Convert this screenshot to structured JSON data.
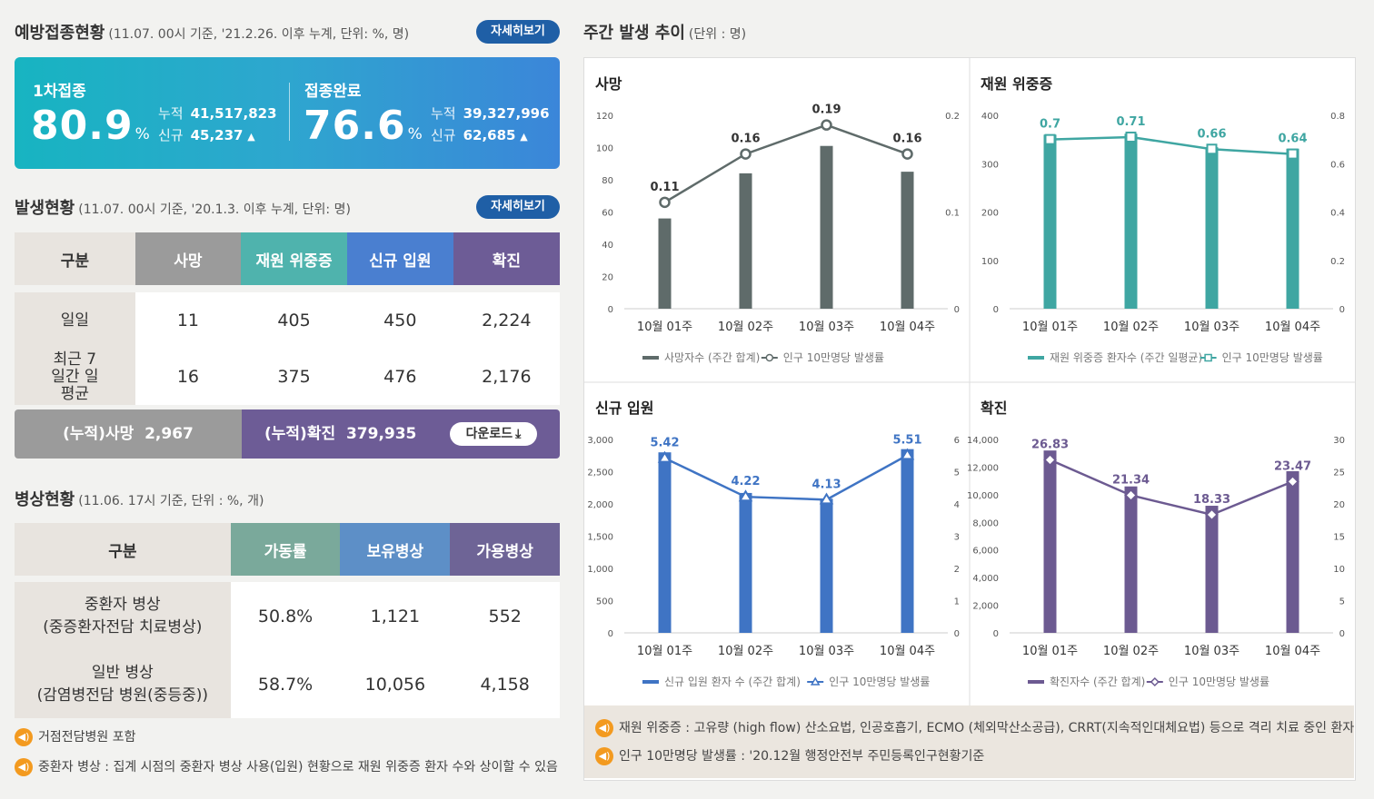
{
  "vaccination": {
    "title": "예방접종현황",
    "subtitle": "(11.07. 00시 기준, '21.2.26. 이후 누계, 단위: %, 명)",
    "more_label": "자세히보기",
    "first": {
      "label": "1차접종",
      "rate": "80.9",
      "unit": "%",
      "cum_label": "누적",
      "cum_value": "41,517,823",
      "new_label": "신규",
      "new_value": "45,237"
    },
    "complete": {
      "label": "접종완료",
      "rate": "76.6",
      "unit": "%",
      "cum_label": "누적",
      "cum_value": "39,327,996",
      "new_label": "신규",
      "new_value": "62,685"
    }
  },
  "occurrence": {
    "title": "발생현황",
    "subtitle": "(11.07. 00시 기준, '20.1.3. 이후 누계, 단위: 명)",
    "more_label": "자세히보기",
    "headers": [
      "구분",
      "사망",
      "재원 위중증",
      "신규 입원",
      "확진"
    ],
    "rows": [
      {
        "label": "일일",
        "values": [
          "11",
          "405",
          "450",
          "2,224"
        ]
      },
      {
        "label": "최근 7일간 일평균",
        "values": [
          "16",
          "375",
          "476",
          "2,176"
        ]
      }
    ],
    "cum_death_label": "(누적)사망",
    "cum_death_value": "2,967",
    "cum_conf_label": "(누적)확진",
    "cum_conf_value": "379,935",
    "download_label": "다운로드"
  },
  "beds": {
    "title": "병상현황",
    "subtitle": "(11.06. 17시 기준, 단위 : %, 개)",
    "headers": [
      "구분",
      "가동률",
      "보유병상",
      "가용병상"
    ],
    "rows": [
      {
        "label1": "중환자 병상",
        "label2": "(중증환자전담 치료병상)",
        "values": [
          "50.8%",
          "1,121",
          "552"
        ]
      },
      {
        "label1": "일반 병상",
        "label2": "(감염병전담 병원(중등중))",
        "values": [
          "58.7%",
          "10,056",
          "4,158"
        ]
      }
    ],
    "notes": [
      "거점전담병원 포함",
      "중환자 병상 : 집계 시점의 중환자 병상 사용(입원) 현황으로 재원 위중증 환자 수와 상이할 수 있음"
    ]
  },
  "weekly": {
    "title": "주간 발생 추이",
    "subtitle": "(단위 : 명)",
    "notes": [
      "재원 위중증 : 고유량 (high flow) 산소요법, 인공호흡기, ECMO (체외막산소공급), CRRT(지속적인대체요법) 등으로 격리 치료 중인 환자",
      "인구 10만명당 발생률 : '20.12월 행정안전부 주민등록인구현황기준"
    ]
  },
  "colors": {
    "death": "#5f6b6a",
    "severe": "#3fa6a2",
    "hosp": "#3f74c4",
    "conf": "#6c5a91",
    "death_head": "#9a9a9a",
    "severe_head": "#4fb3ad",
    "hosp_head": "#4a7fd0",
    "conf_head": "#6d5c96",
    "bed_rate": "#7aa99b",
    "bed_own": "#5d8fc7",
    "bed_avail": "#6e6496"
  },
  "chart_data": [
    {
      "type": "bar",
      "title": "사망",
      "categories": [
        "10월 01주",
        "10월 02주",
        "10월 03주",
        "10월 04주"
      ],
      "series": [
        {
          "name": "사망자수 (주간 합계)",
          "values": [
            56,
            84,
            101,
            85
          ]
        },
        {
          "name": "인구 10만명당 발생률",
          "values": [
            0.11,
            0.16,
            0.19,
            0.16
          ]
        }
      ],
      "ylim": [
        0,
        120
      ],
      "yticks": [
        "0",
        "20",
        "40",
        "60",
        "80",
        "100",
        "120"
      ],
      "y2lim": [
        0,
        0.2
      ],
      "y2ticks": [
        "0",
        "0.1",
        "0.2"
      ]
    },
    {
      "type": "bar",
      "title": "재원 위중증",
      "categories": [
        "10월 01주",
        "10월 02주",
        "10월 03주",
        "10월 04주"
      ],
      "series": [
        {
          "name": "재원 위중증 환자수 (주간 일평균)",
          "values": [
            360,
            362,
            334,
            331
          ]
        },
        {
          "name": "인구 10만명당 발생률",
          "values": [
            0.7,
            0.71,
            0.66,
            0.64
          ]
        }
      ],
      "ylim": [
        0,
        400
      ],
      "yticks": [
        "0",
        "100",
        "200",
        "300",
        "400"
      ],
      "y2lim": [
        0,
        0.8
      ],
      "y2ticks": [
        "0",
        "0.2",
        "0.4",
        "0.6",
        "0.8"
      ]
    },
    {
      "type": "bar",
      "title": "신규 입원",
      "categories": [
        "10월 01주",
        "10월 02주",
        "10월 03주",
        "10월 04주"
      ],
      "series": [
        {
          "name": "신규 입원 환자 수 (주간 합계)",
          "values": [
            2800,
            2170,
            2080,
            2850
          ]
        },
        {
          "name": "인구 10만명당 발생률",
          "values": [
            5.42,
            4.22,
            4.13,
            5.51
          ]
        }
      ],
      "ylim": [
        0,
        3000
      ],
      "yticks": [
        "0",
        "500",
        "1,000",
        "1,500",
        "2,000",
        "2,500",
        "3,000"
      ],
      "y2lim": [
        0,
        6
      ],
      "y2ticks": [
        "0",
        "1",
        "2",
        "3",
        "4",
        "5",
        "6"
      ]
    },
    {
      "type": "bar",
      "title": "확진",
      "categories": [
        "10월 01주",
        "10월 02주",
        "10월 03주",
        "10월 04주"
      ],
      "series": [
        {
          "name": "확진자수 (주간 합계)",
          "values": [
            13200,
            10600,
            9200,
            11700
          ]
        },
        {
          "name": "인구 10만명당 발생률",
          "values": [
            26.83,
            21.34,
            18.33,
            23.47
          ]
        }
      ],
      "ylim": [
        0,
        14000
      ],
      "yticks": [
        "0",
        "2,000",
        "4,000",
        "6,000",
        "8,000",
        "10,000",
        "12,000",
        "14,000"
      ],
      "y2lim": [
        0,
        30
      ],
      "y2ticks": [
        "0",
        "5",
        "10",
        "15",
        "20",
        "25",
        "30"
      ]
    }
  ]
}
